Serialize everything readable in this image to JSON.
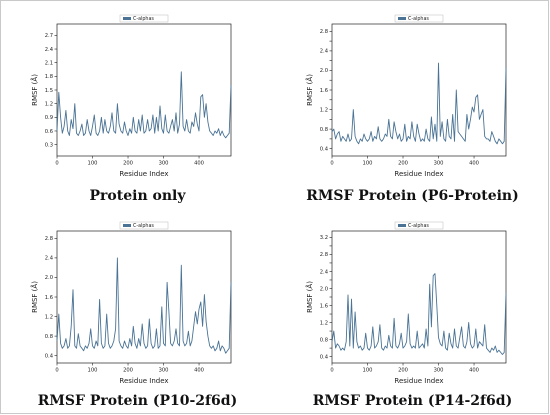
{
  "chart_data": [
    {
      "type": "line",
      "caption": "Protein only",
      "xlabel": "Residue Index",
      "ylabel": "RMSF (Å)",
      "xlim": [
        0,
        490
      ],
      "ylim": [
        0.05,
        2.95
      ],
      "xticks": [
        0,
        100,
        200,
        300,
        400
      ],
      "yticks": [
        0.3,
        0.6,
        0.9,
        1.2,
        1.5,
        1.8,
        2.1,
        2.4,
        2.7
      ],
      "ytick_labels": [
        "0.3",
        "0.6",
        "0.9",
        "1.2",
        "1.5",
        "1.8",
        "2.1",
        "2.4",
        "2.7"
      ],
      "legend": "top-center",
      "series": [
        {
          "name": "C-alphas",
          "color": "#4a7395",
          "x": [
            0,
            5,
            10,
            15,
            20,
            25,
            30,
            35,
            40,
            45,
            50,
            55,
            60,
            65,
            70,
            75,
            80,
            85,
            90,
            95,
            100,
            105,
            110,
            115,
            120,
            125,
            130,
            135,
            140,
            145,
            150,
            155,
            160,
            165,
            170,
            175,
            180,
            185,
            190,
            195,
            200,
            205,
            210,
            215,
            220,
            225,
            230,
            235,
            240,
            245,
            250,
            255,
            260,
            265,
            270,
            275,
            280,
            285,
            290,
            295,
            300,
            305,
            310,
            315,
            320,
            325,
            330,
            335,
            340,
            345,
            350,
            355,
            360,
            365,
            370,
            375,
            380,
            385,
            390,
            395,
            400,
            405,
            410,
            415,
            420,
            425,
            430,
            435,
            440,
            445,
            450,
            455,
            460,
            465,
            470,
            475,
            480,
            485,
            490
          ],
          "y": [
            0.6,
            1.45,
            0.9,
            0.55,
            0.7,
            1.05,
            0.6,
            0.5,
            0.85,
            0.65,
            1.2,
            0.55,
            0.5,
            0.6,
            0.75,
            0.5,
            0.55,
            0.85,
            0.6,
            0.5,
            0.7,
            0.95,
            0.55,
            0.5,
            0.6,
            0.9,
            0.55,
            0.85,
            0.6,
            0.55,
            0.7,
            1.0,
            0.6,
            0.55,
            1.2,
            0.75,
            0.6,
            0.55,
            0.8,
            0.6,
            0.5,
            0.65,
            0.55,
            0.9,
            0.6,
            0.55,
            0.85,
            0.6,
            0.95,
            0.55,
            0.6,
            0.85,
            0.6,
            0.65,
            0.95,
            0.55,
            0.9,
            0.6,
            1.15,
            0.65,
            0.55,
            0.95,
            0.6,
            0.55,
            0.7,
            0.85,
            0.6,
            1.0,
            0.55,
            0.75,
            1.9,
            0.7,
            0.6,
            0.85,
            0.6,
            0.55,
            0.8,
            0.7,
            1.0,
            0.75,
            0.6,
            1.35,
            1.4,
            0.9,
            1.2,
            0.8,
            0.6,
            0.55,
            0.5,
            0.6,
            0.55,
            0.65,
            0.5,
            0.6,
            0.5,
            0.45,
            0.5,
            0.55,
            1.6
          ]
        }
      ]
    },
    {
      "type": "line",
      "caption": "RMSF Protein (P6-Protein)",
      "xlabel": "Residue Index",
      "ylabel": "RMSF (Å)",
      "xlim": [
        0,
        490
      ],
      "ylim": [
        0.25,
        2.95
      ],
      "xticks": [
        0,
        100,
        200,
        300,
        400
      ],
      "yticks": [
        0.4,
        0.6,
        0.8,
        1.0,
        1.2,
        1.4,
        1.6,
        1.8,
        2.0,
        2.2,
        2.4,
        2.6,
        2.8
      ],
      "ytick_labels": [
        "0.4",
        "",
        "0.8",
        "",
        "1.2",
        "",
        "1.6",
        "",
        "2.0",
        "",
        "2.4",
        "",
        "2.8"
      ],
      "legend": "top-center",
      "series": [
        {
          "name": "C-alphas",
          "color": "#4a7395",
          "x": [
            0,
            5,
            10,
            15,
            20,
            25,
            30,
            35,
            40,
            45,
            50,
            55,
            60,
            65,
            70,
            75,
            80,
            85,
            90,
            95,
            100,
            105,
            110,
            115,
            120,
            125,
            130,
            135,
            140,
            145,
            150,
            155,
            160,
            165,
            170,
            175,
            180,
            185,
            190,
            195,
            200,
            205,
            210,
            215,
            220,
            225,
            230,
            235,
            240,
            245,
            250,
            255,
            260,
            265,
            270,
            275,
            280,
            285,
            290,
            295,
            300,
            305,
            310,
            315,
            320,
            325,
            330,
            335,
            340,
            345,
            350,
            355,
            360,
            365,
            370,
            375,
            380,
            385,
            390,
            395,
            400,
            405,
            410,
            415,
            420,
            425,
            430,
            435,
            440,
            445,
            450,
            455,
            460,
            465,
            470,
            475,
            480,
            485,
            490
          ],
          "y": [
            0.75,
            0.8,
            0.6,
            0.7,
            0.75,
            0.55,
            0.65,
            0.6,
            0.55,
            0.7,
            0.55,
            0.6,
            1.2,
            0.65,
            0.55,
            0.5,
            0.6,
            0.55,
            0.7,
            0.6,
            0.55,
            0.6,
            0.75,
            0.55,
            0.65,
            0.6,
            0.85,
            0.6,
            0.55,
            0.6,
            0.7,
            0.65,
            1.0,
            0.65,
            0.6,
            0.95,
            0.75,
            0.6,
            0.7,
            0.55,
            0.6,
            0.9,
            0.55,
            0.65,
            0.6,
            0.95,
            0.65,
            0.55,
            0.9,
            0.7,
            0.55,
            0.6,
            0.55,
            0.8,
            0.6,
            0.55,
            1.05,
            0.6,
            0.9,
            0.55,
            2.15,
            0.65,
            0.95,
            0.6,
            0.55,
            1.0,
            0.65,
            0.6,
            1.1,
            0.55,
            1.6,
            0.75,
            0.7,
            0.65,
            0.6,
            0.55,
            1.1,
            0.8,
            1.0,
            1.25,
            1.15,
            1.45,
            1.5,
            1.0,
            1.1,
            1.2,
            0.65,
            0.6,
            0.6,
            0.55,
            0.75,
            0.65,
            0.55,
            0.5,
            0.6,
            0.55,
            0.5,
            0.55,
            2.05
          ]
        }
      ]
    },
    {
      "type": "line",
      "caption": "RMSF Protein (P10-2f6d)",
      "xlabel": "Residue Index",
      "ylabel": "RMSF (Å)",
      "xlim": [
        0,
        490
      ],
      "ylim": [
        0.25,
        2.95
      ],
      "xticks": [
        0,
        100,
        200,
        300,
        400
      ],
      "yticks": [
        0.4,
        0.8,
        1.2,
        1.6,
        2.0,
        2.4,
        2.8
      ],
      "ytick_labels": [
        "0.4",
        "0.8",
        "1.2",
        "1.6",
        "2.0",
        "2.4",
        "2.8"
      ],
      "legend": "top-center",
      "series": [
        {
          "name": "C-alphas",
          "color": "#4a7395",
          "x": [
            0,
            5,
            10,
            15,
            20,
            25,
            30,
            35,
            40,
            45,
            50,
            55,
            60,
            65,
            70,
            75,
            80,
            85,
            90,
            95,
            100,
            105,
            110,
            115,
            120,
            125,
            130,
            135,
            140,
            145,
            150,
            155,
            160,
            165,
            170,
            175,
            180,
            185,
            190,
            195,
            200,
            205,
            210,
            215,
            220,
            225,
            230,
            235,
            240,
            245,
            250,
            255,
            260,
            265,
            270,
            275,
            280,
            285,
            290,
            295,
            300,
            305,
            310,
            315,
            320,
            325,
            330,
            335,
            340,
            345,
            350,
            355,
            360,
            365,
            370,
            375,
            380,
            385,
            390,
            395,
            400,
            405,
            410,
            415,
            420,
            425,
            430,
            435,
            440,
            445,
            450,
            455,
            460,
            465,
            470,
            475,
            480,
            485,
            490
          ],
          "y": [
            0.7,
            1.25,
            0.65,
            0.55,
            0.6,
            0.75,
            0.55,
            0.6,
            1.0,
            1.75,
            0.6,
            0.55,
            0.85,
            0.6,
            0.55,
            0.5,
            0.6,
            0.55,
            0.65,
            0.95,
            0.6,
            0.55,
            0.7,
            0.6,
            1.55,
            0.65,
            0.55,
            0.6,
            1.25,
            0.65,
            0.55,
            0.6,
            0.7,
            0.95,
            2.4,
            0.7,
            0.6,
            0.55,
            0.7,
            0.6,
            0.55,
            0.75,
            0.6,
            1.0,
            0.65,
            0.55,
            0.75,
            0.6,
            1.05,
            0.65,
            0.55,
            0.6,
            1.15,
            0.65,
            0.55,
            0.6,
            0.95,
            0.55,
            0.6,
            1.4,
            0.65,
            0.6,
            1.9,
            1.3,
            0.65,
            0.6,
            0.7,
            0.95,
            0.65,
            0.6,
            2.25,
            0.7,
            0.6,
            0.65,
            0.9,
            0.6,
            0.7,
            1.0,
            1.3,
            1.05,
            1.35,
            1.5,
            1.0,
            1.65,
            1.1,
            0.8,
            0.6,
            0.55,
            0.6,
            0.5,
            0.55,
            0.7,
            0.5,
            0.6,
            0.55,
            0.45,
            0.5,
            0.55,
            1.9
          ]
        }
      ]
    },
    {
      "type": "line",
      "caption": "RMSF Protein (P14-2f6d)",
      "xlabel": "Residue Index",
      "ylabel": "RMSF (Å)",
      "xlim": [
        0,
        490
      ],
      "ylim": [
        0.25,
        3.35
      ],
      "xticks": [
        0,
        100,
        200,
        300,
        400
      ],
      "yticks": [
        0.4,
        0.6,
        0.8,
        1.0,
        1.2,
        1.4,
        1.6,
        1.8,
        2.0,
        2.2,
        2.4,
        2.6,
        2.8,
        3.0,
        3.2
      ],
      "ytick_labels": [
        "0.4",
        "",
        "0.8",
        "",
        "1.2",
        "",
        "1.6",
        "",
        "2.0",
        "",
        "2.4",
        "",
        "2.8",
        "",
        "3.2"
      ],
      "legend": "top-center",
      "series": [
        {
          "name": "C-alphas",
          "color": "#4a7395",
          "x": [
            0,
            5,
            10,
            15,
            20,
            25,
            30,
            35,
            40,
            45,
            50,
            55,
            60,
            65,
            70,
            75,
            80,
            85,
            90,
            95,
            100,
            105,
            110,
            115,
            120,
            125,
            130,
            135,
            140,
            145,
            150,
            155,
            160,
            165,
            170,
            175,
            180,
            185,
            190,
            195,
            200,
            205,
            210,
            215,
            220,
            225,
            230,
            235,
            240,
            245,
            250,
            255,
            260,
            265,
            270,
            275,
            280,
            285,
            290,
            295,
            300,
            305,
            310,
            315,
            320,
            325,
            330,
            335,
            340,
            345,
            350,
            355,
            360,
            365,
            370,
            375,
            380,
            385,
            390,
            395,
            400,
            405,
            410,
            415,
            420,
            425,
            430,
            435,
            440,
            445,
            450,
            455,
            460,
            465,
            470,
            475,
            480,
            485,
            490
          ],
          "y": [
            0.75,
            1.0,
            0.6,
            0.7,
            0.65,
            0.55,
            0.6,
            0.55,
            0.75,
            1.85,
            0.65,
            1.75,
            0.6,
            1.45,
            0.75,
            0.6,
            0.65,
            0.55,
            0.6,
            0.95,
            0.6,
            0.55,
            0.65,
            1.1,
            0.6,
            0.65,
            0.75,
            1.15,
            0.6,
            0.55,
            0.65,
            0.6,
            0.9,
            0.65,
            0.6,
            1.3,
            0.65,
            0.6,
            0.7,
            0.95,
            0.6,
            0.65,
            0.75,
            1.4,
            0.7,
            0.6,
            0.65,
            0.6,
            1.0,
            0.6,
            0.65,
            0.7,
            0.6,
            1.05,
            0.65,
            2.1,
            1.1,
            2.3,
            2.35,
            1.6,
            0.85,
            0.7,
            0.65,
            1.0,
            0.6,
            0.55,
            0.95,
            0.7,
            0.6,
            1.05,
            0.65,
            0.6,
            0.85,
            1.1,
            0.65,
            0.6,
            0.75,
            1.2,
            0.7,
            0.6,
            0.65,
            1.05,
            0.6,
            0.75,
            0.7,
            0.65,
            1.15,
            0.6,
            0.55,
            0.5,
            0.6,
            0.55,
            0.65,
            0.5,
            0.55,
            0.5,
            0.45,
            0.5,
            1.9
          ]
        }
      ]
    }
  ]
}
